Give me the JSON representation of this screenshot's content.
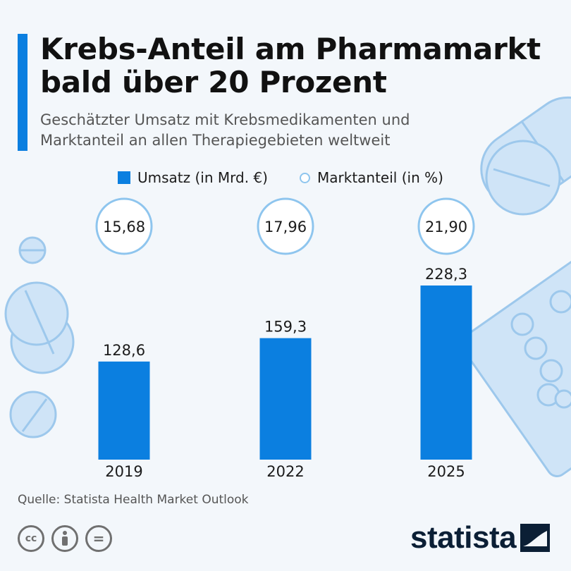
{
  "header": {
    "title": "Krebs-Anteil am Pharmamarkt bald über 20 Prozent",
    "subtitle": "Geschätzter Umsatz mit Krebsmedikamenten und Marktanteil an allen Therapiegebieten weltweit"
  },
  "legend": {
    "bar_label": "Umsatz (in Mrd. €)",
    "circle_label": "Marktanteil (in %)"
  },
  "chart_data": {
    "type": "bar",
    "categories": [
      "2019",
      "2022",
      "2025"
    ],
    "series": [
      {
        "name": "Umsatz (in Mrd. €)",
        "values": [
          128.6,
          159.3,
          228.3
        ],
        "labels": [
          "128,6",
          "159,3",
          "228,3"
        ]
      },
      {
        "name": "Marktanteil (in %)",
        "values": [
          15.68,
          17.96,
          21.9
        ],
        "labels": [
          "15,68",
          "17,96",
          "21,90"
        ]
      }
    ],
    "ylim": [
      0,
      240
    ],
    "colors": {
      "bar": "#0b7fe0",
      "circle_stroke": "#8ec5ee"
    }
  },
  "footer": {
    "source": "Quelle: Statista Health Market Outlook",
    "brand": "statista",
    "license_icons": [
      "cc-icon",
      "attribution-icon",
      "noderivs-icon"
    ],
    "license_glyphs": [
      "cc",
      "",
      "="
    ]
  }
}
